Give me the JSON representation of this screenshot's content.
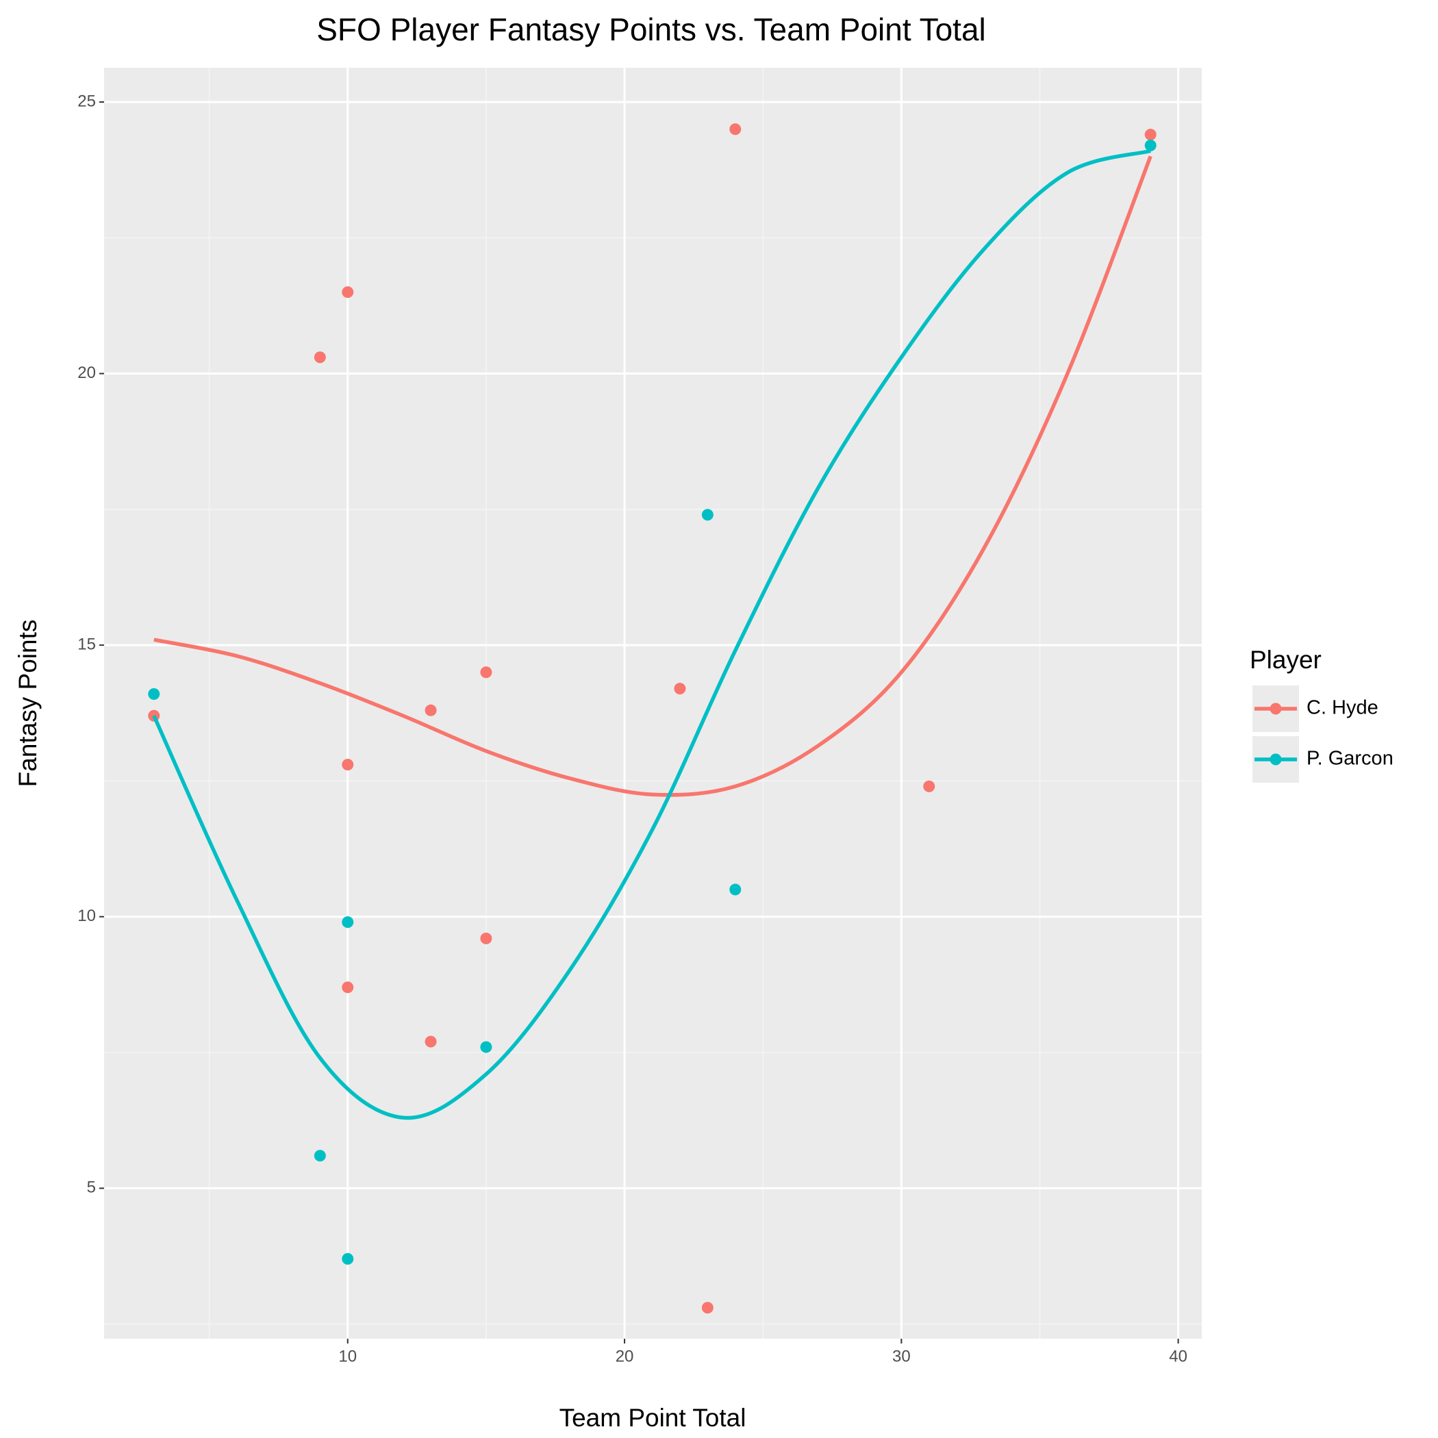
{
  "chart_data": {
    "type": "scatter",
    "title": "SFO Player Fantasy Points vs. Team Point Total",
    "x_label": "Team Point Total",
    "y_label": "Fantasy Points",
    "xlim": [
      1.2,
      40.85
    ],
    "ylim": [
      2.23,
      25.63
    ],
    "xticks": [
      10,
      20,
      30,
      40
    ],
    "yticks": [
      5,
      10,
      15,
      20,
      25
    ],
    "xminor": [
      5,
      15,
      25,
      35
    ],
    "yminor": [
      2.5,
      7.5,
      12.5,
      17.5,
      22.5
    ],
    "grid": true,
    "legend_title": "Player",
    "legend_position": "right",
    "series": [
      {
        "name": "C. Hyde",
        "color": "#F8766D",
        "x": [
          3,
          9,
          10,
          10,
          10,
          13,
          13,
          15,
          15,
          22,
          23,
          24,
          31,
          39
        ],
        "values": [
          13.7,
          20.3,
          21.5,
          12.8,
          8.7,
          13.8,
          7.7,
          14.5,
          9.6,
          14.2,
          2.8,
          24.5,
          12.4,
          24.4
        ],
        "fit_x": [
          3,
          6,
          9,
          12,
          15,
          18,
          21,
          24,
          27,
          30,
          33,
          36,
          39
        ],
        "fit_values": [
          15.1,
          14.8,
          14.3,
          13.7,
          13.05,
          12.55,
          12.25,
          12.4,
          13.15,
          14.5,
          16.8,
          20.0,
          24.0
        ]
      },
      {
        "name": "P. Garcon",
        "color": "#00BFC4",
        "x": [
          3,
          9,
          10,
          10,
          15,
          23,
          24,
          39
        ],
        "values": [
          14.1,
          5.6,
          9.9,
          3.7,
          7.6,
          17.4,
          10.5,
          24.2
        ],
        "fit_x": [
          3,
          6,
          9,
          12,
          15,
          18,
          21,
          24,
          27,
          30,
          33,
          36,
          39
        ],
        "fit_values": [
          13.7,
          10.3,
          7.4,
          6.3,
          7.1,
          9.0,
          11.6,
          14.9,
          17.9,
          20.3,
          22.3,
          23.7,
          24.1
        ]
      }
    ]
  }
}
